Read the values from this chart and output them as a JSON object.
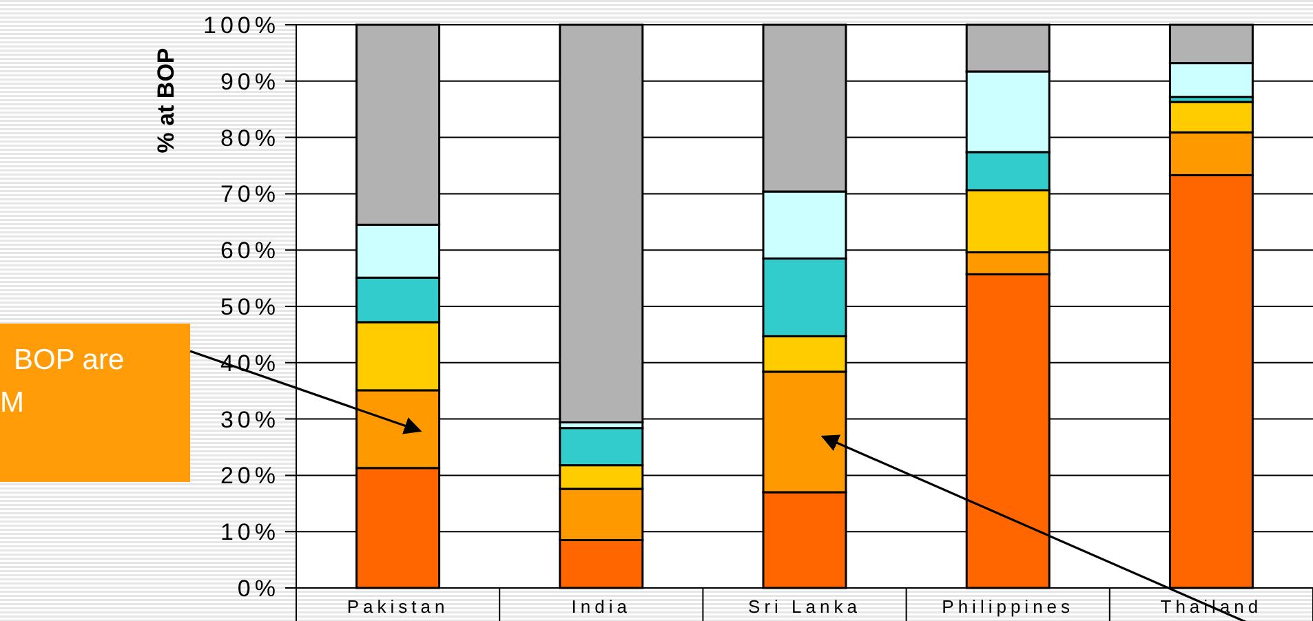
{
  "chart_data": {
    "type": "bar",
    "stacked": true,
    "ylabel": "% at BOP",
    "categories": [
      "Pakistan",
      "India",
      "Sri Lanka",
      "Philippines",
      "Thailand"
    ],
    "series": [
      {
        "color": "#ff6600",
        "values": [
          21.3,
          8.5,
          17.0,
          55.7,
          73.3
        ]
      },
      {
        "color": "#ff9900",
        "values": [
          13.8,
          9.1,
          21.4,
          3.9,
          7.6
        ]
      },
      {
        "color": "#ffcc00",
        "values": [
          12.1,
          4.2,
          6.3,
          11.0,
          5.4
        ]
      },
      {
        "color": "#33cccc",
        "values": [
          7.9,
          6.6,
          13.8,
          6.8,
          0.9
        ]
      },
      {
        "color": "#ccffff",
        "values": [
          9.4,
          1.0,
          11.9,
          14.3,
          6.0
        ]
      },
      {
        "color": "#b2b2b2",
        "values": [
          35.5,
          70.6,
          29.6,
          8.3,
          6.8
        ]
      }
    ],
    "ylim": [
      0,
      100
    ],
    "yticks": [
      {
        "value": 0,
        "label": "0%"
      },
      {
        "value": 10,
        "label": "10%"
      },
      {
        "value": 20,
        "label": "20%"
      },
      {
        "value": 30,
        "label": "30%"
      },
      {
        "value": 40,
        "label": "40%"
      },
      {
        "value": 50,
        "label": "50%"
      },
      {
        "value": 60,
        "label": "60%"
      },
      {
        "value": 70,
        "label": "70%"
      },
      {
        "value": 80,
        "label": "80%"
      },
      {
        "value": 90,
        "label": "90%"
      },
      {
        "value": 100,
        "label": "100%"
      }
    ],
    "grid": "y",
    "annotations": [
      "BOP are\nM"
    ]
  }
}
